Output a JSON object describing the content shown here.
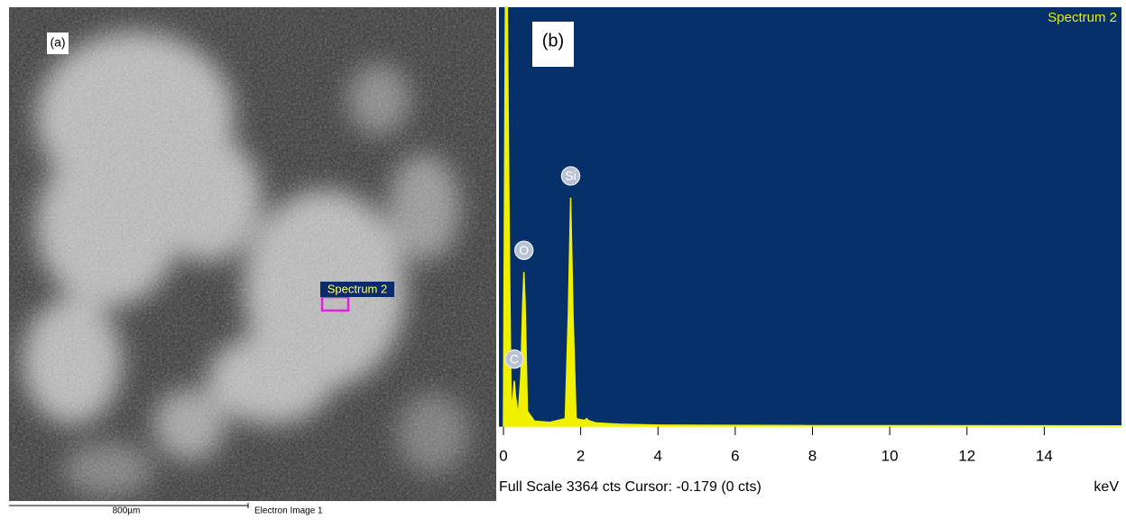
{
  "sem_image": {
    "panel_label": "(a)",
    "region_label": "Spectrum 2",
    "scale_bar": "800µm",
    "caption": "Electron Image 1"
  },
  "chart_data": {
    "type": "area",
    "panel_label": "(b)",
    "title": "Spectrum 2",
    "footer": "Full Scale 3364 cts Cursor: -0.179  (0 cts)",
    "x_label": "keV",
    "x": [
      0,
      0.05,
      0.1,
      0.15,
      0.2,
      0.25,
      0.28,
      0.31,
      0.38,
      0.45,
      0.5,
      0.53,
      0.56,
      0.62,
      0.8,
      1.2,
      1.6,
      1.68,
      1.74,
      1.8,
      1.88,
      2.1,
      2.15,
      2.2,
      2.4,
      3,
      4,
      8,
      16
    ],
    "series": [
      {
        "name": "Spectrum 2",
        "color": "#f0f000",
        "values": [
          0,
          3364,
          3364,
          1500,
          120,
          250,
          364,
          250,
          80,
          400,
          1000,
          1238,
          1000,
          120,
          40,
          30,
          60,
          900,
          1835,
          900,
          60,
          45,
          60,
          45,
          25,
          15,
          8,
          4,
          2
        ]
      }
    ],
    "peaks": [
      {
        "label": "C",
        "x": 0.28,
        "y": 364
      },
      {
        "label": "O",
        "x": 0.53,
        "y": 1238
      },
      {
        "label": "Si",
        "x": 1.74,
        "y": 1835
      }
    ],
    "xlim": [
      0,
      16
    ],
    "xticks": [
      0,
      2,
      4,
      6,
      8,
      10,
      12,
      14
    ],
    "ylim": [
      0,
      3364
    ]
  }
}
